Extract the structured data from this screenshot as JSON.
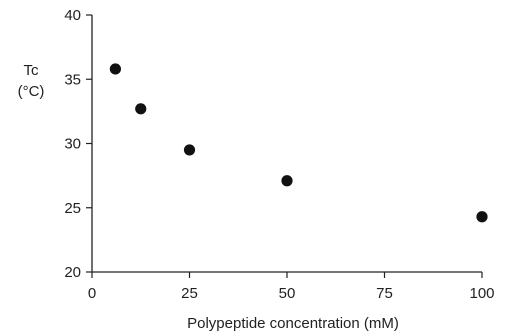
{
  "chart_data": {
    "type": "scatter",
    "title": "",
    "xlabel": "Polypeptide concentration (mM)",
    "ylabel_lines": [
      "Tc",
      "(°C)"
    ],
    "xlim": [
      0,
      100
    ],
    "ylim": [
      20,
      40
    ],
    "xticks": [
      0,
      25,
      50,
      75,
      100
    ],
    "yticks": [
      20,
      25,
      30,
      35,
      40
    ],
    "grid": false,
    "legend": "none",
    "series": [
      {
        "x": [
          6,
          12.5,
          25,
          50,
          100
        ],
        "y": [
          35.8,
          32.7,
          29.5,
          27.1,
          24.3
        ]
      }
    ]
  }
}
